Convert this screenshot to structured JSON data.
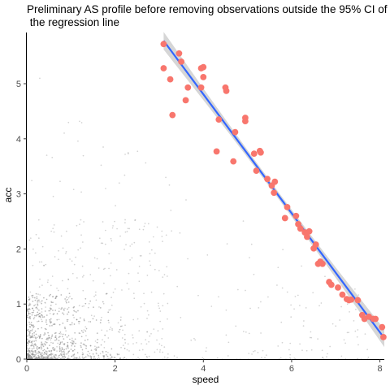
{
  "chart_data": {
    "type": "scatter",
    "title_line1": "Preliminary AS profile before removing observations outside the 95% CI of",
    "title_line2": " the regression line",
    "xlabel": "speed",
    "ylabel": "acc",
    "xlim": [
      0,
      8.1
    ],
    "ylim": [
      0,
      5.9
    ],
    "x_ticks": [
      0,
      2,
      4,
      6,
      8
    ],
    "y_ticks": [
      0,
      1,
      2,
      3,
      4,
      5
    ],
    "grid": false,
    "colors": {
      "highlight_points": "#F8766D",
      "regression_line": "#3366FF",
      "confidence_band": "#C8C8C8",
      "background_points": "#7f7f7f"
    },
    "series": [
      {
        "kind": "highlighted",
        "points": [
          [
            3.1,
            5.72
          ],
          [
            3.1,
            5.28
          ],
          [
            3.25,
            5.08
          ],
          [
            3.3,
            4.43
          ],
          [
            3.45,
            5.55
          ],
          [
            3.5,
            5.4
          ],
          [
            3.6,
            4.7
          ],
          [
            3.65,
            4.93
          ],
          [
            3.95,
            5.28
          ],
          [
            4.0,
            5.3
          ],
          [
            4.0,
            5.12
          ],
          [
            3.95,
            4.93
          ],
          [
            4.3,
            3.77
          ],
          [
            4.35,
            4.35
          ],
          [
            4.5,
            4.93
          ],
          [
            4.52,
            4.87
          ],
          [
            4.68,
            3.59
          ],
          [
            4.72,
            4.12
          ],
          [
            4.95,
            4.38
          ],
          [
            4.95,
            4.32
          ],
          [
            5.15,
            3.73
          ],
          [
            5.2,
            3.42
          ],
          [
            5.28,
            3.78
          ],
          [
            5.3,
            3.75
          ],
          [
            5.45,
            3.27
          ],
          [
            5.55,
            3.15
          ],
          [
            5.6,
            3.02
          ],
          [
            5.62,
            3.22
          ],
          [
            5.85,
            2.56
          ],
          [
            5.9,
            2.76
          ],
          [
            6.1,
            2.6
          ],
          [
            6.15,
            2.45
          ],
          [
            6.2,
            2.37
          ],
          [
            6.3,
            2.3
          ],
          [
            6.35,
            2.22
          ],
          [
            6.4,
            2.32
          ],
          [
            6.5,
            2.01
          ],
          [
            6.55,
            2.08
          ],
          [
            6.6,
            1.73
          ],
          [
            6.65,
            1.77
          ],
          [
            6.7,
            1.73
          ],
          [
            6.85,
            1.4
          ],
          [
            6.9,
            1.35
          ],
          [
            7.05,
            1.3
          ],
          [
            7.15,
            1.17
          ],
          [
            7.25,
            1.09
          ],
          [
            7.3,
            1.07
          ],
          [
            7.35,
            1.08
          ],
          [
            7.5,
            1.07
          ],
          [
            7.6,
            0.8
          ],
          [
            7.65,
            0.73
          ],
          [
            7.75,
            0.77
          ],
          [
            7.85,
            0.73
          ],
          [
            7.9,
            0.73
          ],
          [
            8.05,
            0.58
          ],
          [
            8.08,
            0.4
          ]
        ]
      }
    ],
    "regression_line": {
      "x": [
        3.1,
        8.1
      ],
      "y": [
        5.78,
        0.38
      ]
    },
    "confidence_band": {
      "x": [
        3.1,
        3.6,
        4.1,
        4.6,
        5.1,
        5.6,
        6.1,
        6.6,
        7.1,
        7.6,
        8.1
      ],
      "half_width": [
        0.16,
        0.13,
        0.1,
        0.08,
        0.065,
        0.06,
        0.065,
        0.08,
        0.1,
        0.13,
        0.16
      ]
    }
  }
}
